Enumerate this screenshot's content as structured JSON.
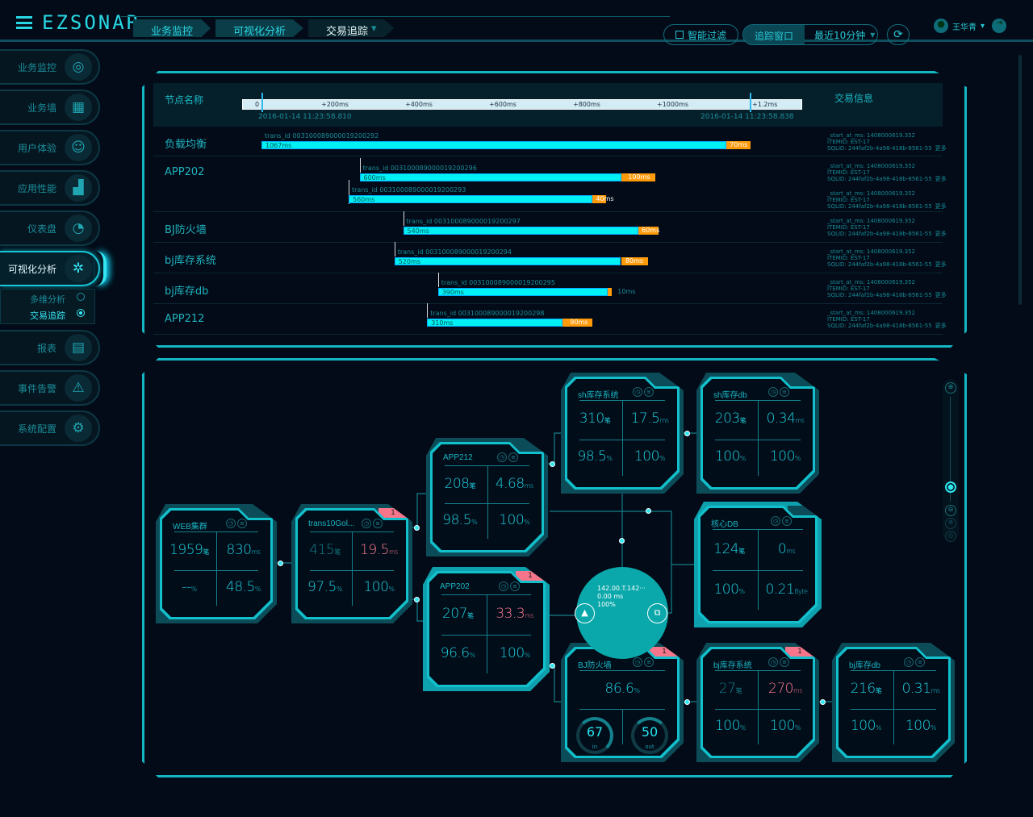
{
  "header": {
    "logo": "EZSONAR",
    "breadcrumbs": [
      "业务监控",
      "可视化分析",
      "交易追踪"
    ],
    "smart_filter": "智能过滤",
    "trace_window": "追踪窗口",
    "time_range": "最近10分钟",
    "user": "王华青"
  },
  "sidebar": {
    "items": [
      {
        "label": "业务监控",
        "icon": "◎"
      },
      {
        "label": "业务墙",
        "icon": "▦"
      },
      {
        "label": "用户体验",
        "icon": "☺"
      },
      {
        "label": "应用性能",
        "icon": "▟"
      },
      {
        "label": "仪表盘",
        "icon": "◔"
      },
      {
        "label": "可视化分析",
        "icon": "✲",
        "active": true
      },
      {
        "label": "报表",
        "icon": "▤"
      },
      {
        "label": "事件告警",
        "icon": "⚠"
      },
      {
        "label": "系统配置",
        "icon": "⚙"
      }
    ],
    "sub_items": [
      {
        "label": "多维分析",
        "selected": false
      },
      {
        "label": "交易追踪",
        "selected": true
      }
    ]
  },
  "timeline": {
    "col_node": "节点名称",
    "col_info": "交易信息",
    "ticks": [
      "0",
      "+200ms",
      "+400ms",
      "+600ms",
      "+800ms",
      "+1000ms",
      "+1.2ms"
    ],
    "start_time": "2016-01-14 11:23:58.810",
    "end_time": "2016-01-14 11:23:58.838",
    "more": "更多",
    "info": {
      "l1": "_start_at_ms: 1408000619.352",
      "l2": "ITEMID: EST-17",
      "l3": "SQLID: 244faf2b-4a98-418b-8561-55"
    },
    "rows": [
      {
        "name": "负载均衡",
        "bars": [
          {
            "trans_id": "trans_id 003100089000019200292",
            "start_ms": 0,
            "main": "1067ms",
            "main_ms": 1067,
            "tail": "70ms",
            "tail_ms": 70
          }
        ]
      },
      {
        "name": "APP202",
        "bars": [
          {
            "trans_id": "trans_id 003100089000019200296",
            "start_ms": 225,
            "main": "600ms",
            "main_ms": 600,
            "tail": "100ms",
            "tail_ms": 100
          },
          {
            "trans_id": "trans_id 003100089000019200293",
            "start_ms": 200,
            "main": "560ms",
            "main_ms": 560,
            "tail": "40ms",
            "tail_ms": 40
          }
        ]
      },
      {
        "name": "BJ防火墙",
        "bars": [
          {
            "trans_id": "trans_id 003100089000019200297",
            "start_ms": 325,
            "main": "540ms",
            "main_ms": 540,
            "tail": "60ms",
            "tail_ms": 60
          }
        ]
      },
      {
        "name": "bj库存系统",
        "bars": [
          {
            "trans_id": "trans_id 003100089000019200294",
            "start_ms": 305,
            "main": "520ms",
            "main_ms": 520,
            "tail": "80ms",
            "tail_ms": 80
          }
        ]
      },
      {
        "name": "bj库存db",
        "bars": [
          {
            "trans_id": "trans_id 003100089000019200295",
            "start_ms": 405,
            "main": "390ms",
            "main_ms": 390,
            "tail": "10ms",
            "tail_ms": 10
          }
        ]
      },
      {
        "name": "APP212",
        "bars": [
          {
            "trans_id": "trans_id 003100089000019200298",
            "start_ms": 380,
            "main": "310ms",
            "main_ms": 310,
            "tail": "90ms",
            "tail_ms": 90
          }
        ]
      }
    ]
  },
  "colors": {
    "accent": "#15b6c4",
    "bar": "#00f0f4",
    "tail": "#ff9a0a",
    "alert": "#f7758a"
  },
  "graph": {
    "center_node": {
      "ip": "142.00.T.142···",
      "latency": "0.00 ms",
      "rate": "100%"
    },
    "cards": [
      {
        "id": "web",
        "title": "WEB集群",
        "cells": [
          {
            "v": "1959",
            "u": "笔"
          },
          {
            "v": "830",
            "u": "ms"
          },
          {
            "v": "--",
            "u": "%"
          },
          {
            "v": "48.5",
            "u": "%"
          }
        ]
      },
      {
        "id": "trans",
        "title": "trans10Gol...",
        "badge": "1",
        "cells": [
          {
            "v": "415",
            "u": "笔",
            "dim": true
          },
          {
            "v": "19.5",
            "u": "ms",
            "alert": true
          },
          {
            "v": "97.5",
            "u": "%"
          },
          {
            "v": "100",
            "u": "%"
          }
        ]
      },
      {
        "id": "app212",
        "title": "APP212",
        "cells": [
          {
            "v": "208",
            "u": "笔"
          },
          {
            "v": "4.68",
            "u": "ms"
          },
          {
            "v": "98.5",
            "u": "%"
          },
          {
            "v": "100",
            "u": "%"
          }
        ]
      },
      {
        "id": "app202",
        "title": "APP202",
        "badge": "1",
        "selected": true,
        "cells": [
          {
            "v": "207",
            "u": "笔"
          },
          {
            "v": "33.3",
            "u": "ms",
            "alert": true
          },
          {
            "v": "96.6",
            "u": "%"
          },
          {
            "v": "100",
            "u": "%"
          }
        ]
      },
      {
        "id": "shsys",
        "title": "sh库存系统",
        "cells": [
          {
            "v": "310",
            "u": "笔"
          },
          {
            "v": "17.5",
            "u": "ms"
          },
          {
            "v": "98.5",
            "u": "%"
          },
          {
            "v": "100",
            "u": "%"
          }
        ]
      },
      {
        "id": "shdb",
        "title": "sh库存db",
        "cells": [
          {
            "v": "203",
            "u": "笔"
          },
          {
            "v": "0.34",
            "u": "ms"
          },
          {
            "v": "100",
            "u": "%"
          },
          {
            "v": "100",
            "u": "%"
          }
        ]
      },
      {
        "id": "coredb",
        "title": "核心DB",
        "selected": true,
        "cells": [
          {
            "v": "124",
            "u": "笔"
          },
          {
            "v": "0",
            "u": "ms"
          },
          {
            "v": "100",
            "u": "%"
          },
          {
            "v": "0.21",
            "u": "Byte"
          }
        ]
      },
      {
        "id": "bjfw",
        "title": "BJ防火墙",
        "badge": "1",
        "firewall": {
          "v": "86.6",
          "u": "%",
          "in": "67",
          "in_label": "in",
          "in_pct": 70,
          "out": "50",
          "out_label": "out",
          "out_pct": 50
        }
      },
      {
        "id": "bjsys",
        "title": "bj库存系统",
        "badge": "1",
        "cells": [
          {
            "v": "27",
            "u": "笔",
            "dim": true
          },
          {
            "v": "270",
            "u": "ms",
            "alert": true
          },
          {
            "v": "100",
            "u": "%"
          },
          {
            "v": "100",
            "u": "%"
          }
        ]
      },
      {
        "id": "bjdb",
        "title": "bj库存db",
        "cells": [
          {
            "v": "216",
            "u": "笔"
          },
          {
            "v": "0.31",
            "u": "ms"
          },
          {
            "v": "100",
            "u": "%"
          },
          {
            "v": "100",
            "u": "%"
          }
        ]
      }
    ],
    "zoom_level": 0.15
  }
}
